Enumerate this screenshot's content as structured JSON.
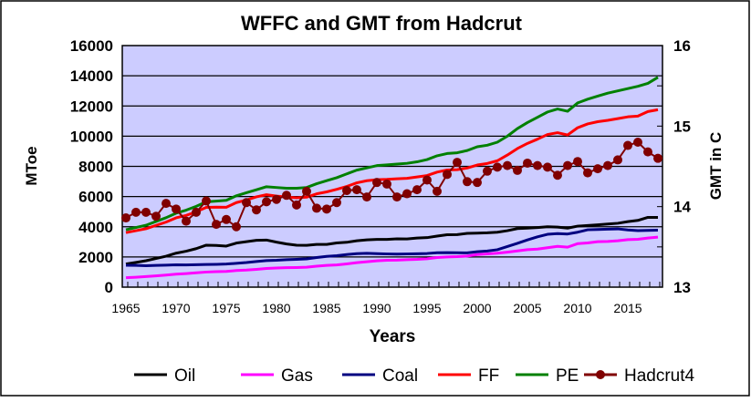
{
  "chart_data": {
    "type": "line",
    "title": "WFFC and GMT from Hadcrut",
    "xlabel": "Years",
    "ylabel": "MToe",
    "y2label": "GMT in C",
    "xlim": [
      1965,
      2018
    ],
    "ylim": [
      0,
      16000
    ],
    "y2lim": [
      13,
      16
    ],
    "xticks": [
      "1965",
      "1970",
      "1975",
      "1980",
      "1985",
      "1990",
      "1995",
      "2000",
      "2005",
      "2010",
      "2015"
    ],
    "yticks": [
      "0",
      "2000",
      "4000",
      "6000",
      "8000",
      "10000",
      "12000",
      "14000",
      "16000"
    ],
    "y2ticks": [
      "13",
      "14",
      "15",
      "16"
    ],
    "grid": true,
    "legend": "bottom",
    "background": "#ccccff",
    "x_start": 1965,
    "series": [
      {
        "name": "Oil",
        "color": "#000000",
        "axis": "left",
        "values": [
          1530,
          1640,
          1750,
          1900,
          2050,
          2250,
          2380,
          2550,
          2780,
          2760,
          2720,
          2920,
          3010,
          3100,
          3120,
          2980,
          2860,
          2780,
          2770,
          2830,
          2830,
          2930,
          2970,
          3070,
          3130,
          3160,
          3160,
          3200,
          3190,
          3250,
          3280,
          3380,
          3470,
          3480,
          3560,
          3580,
          3600,
          3640,
          3740,
          3880,
          3910,
          3950,
          4000,
          3980,
          3910,
          4040,
          4080,
          4130,
          4180,
          4230,
          4340,
          4420,
          4620,
          4620
        ]
      },
      {
        "name": "Gas",
        "color": "#ff00ff",
        "axis": "left",
        "values": [
          630,
          660,
          700,
          750,
          800,
          860,
          900,
          950,
          1000,
          1030,
          1040,
          1100,
          1130,
          1180,
          1240,
          1270,
          1290,
          1300,
          1320,
          1390,
          1440,
          1470,
          1540,
          1620,
          1680,
          1740,
          1780,
          1790,
          1820,
          1840,
          1880,
          1960,
          2000,
          2020,
          2060,
          2160,
          2200,
          2250,
          2320,
          2400,
          2480,
          2520,
          2610,
          2700,
          2650,
          2880,
          2930,
          3010,
          3030,
          3070,
          3150,
          3170,
          3250,
          3310
        ]
      },
      {
        "name": "Coal",
        "color": "#000080",
        "axis": "left",
        "values": [
          1450,
          1440,
          1420,
          1440,
          1460,
          1480,
          1470,
          1490,
          1500,
          1510,
          1530,
          1580,
          1630,
          1700,
          1760,
          1780,
          1820,
          1840,
          1870,
          1960,
          2040,
          2080,
          2160,
          2220,
          2240,
          2220,
          2200,
          2190,
          2200,
          2210,
          2230,
          2280,
          2290,
          2280,
          2270,
          2350,
          2390,
          2480,
          2690,
          2900,
          3130,
          3330,
          3500,
          3550,
          3520,
          3640,
          3800,
          3820,
          3840,
          3860,
          3790,
          3740,
          3760,
          3770
        ]
      },
      {
        "name": "FF",
        "color": "#ff0000",
        "axis": "left",
        "values": [
          3610,
          3740,
          3870,
          4090,
          4310,
          4590,
          4750,
          4990,
          5280,
          5300,
          5290,
          5600,
          5770,
          5980,
          6120,
          6030,
          5970,
          5920,
          5960,
          6180,
          6310,
          6480,
          6670,
          6910,
          7050,
          7120,
          7140,
          7180,
          7210,
          7300,
          7390,
          7620,
          7760,
          7780,
          7890,
          8090,
          8190,
          8370,
          8750,
          9180,
          9520,
          9800,
          10110,
          10230,
          10080,
          10560,
          10810,
          10960,
          11050,
          11160,
          11280,
          11330,
          11630,
          11750
        ]
      },
      {
        "name": "PE",
        "color": "#008000",
        "axis": "left",
        "values": [
          3800,
          3950,
          4100,
          4350,
          4600,
          4900,
          5100,
          5350,
          5650,
          5700,
          5750,
          6050,
          6250,
          6450,
          6650,
          6600,
          6550,
          6550,
          6600,
          6850,
          7050,
          7250,
          7500,
          7750,
          7900,
          8050,
          8100,
          8150,
          8200,
          8300,
          8450,
          8700,
          8850,
          8900,
          9050,
          9300,
          9400,
          9600,
          10000,
          10500,
          10900,
          11250,
          11600,
          11800,
          11650,
          12200,
          12450,
          12650,
          12850,
          13000,
          13150,
          13300,
          13500,
          13900
        ]
      },
      {
        "name": "Hadcrut4",
        "color": "#800000",
        "axis": "right",
        "markers": true,
        "values": [
          13.86,
          13.93,
          13.93,
          13.88,
          14.04,
          13.97,
          13.82,
          13.93,
          14.07,
          13.78,
          13.84,
          13.75,
          14.05,
          13.96,
          14.06,
          14.09,
          14.14,
          14.02,
          14.19,
          13.98,
          13.97,
          14.05,
          14.2,
          14.21,
          14.12,
          14.3,
          14.28,
          14.12,
          14.16,
          14.21,
          14.33,
          14.19,
          14.4,
          14.55,
          14.31,
          14.3,
          14.44,
          14.49,
          14.51,
          14.45,
          14.54,
          14.51,
          14.49,
          14.39,
          14.51,
          14.56,
          14.42,
          14.47,
          14.51,
          14.58,
          14.76,
          14.8,
          14.68,
          14.6
        ]
      }
    ]
  }
}
